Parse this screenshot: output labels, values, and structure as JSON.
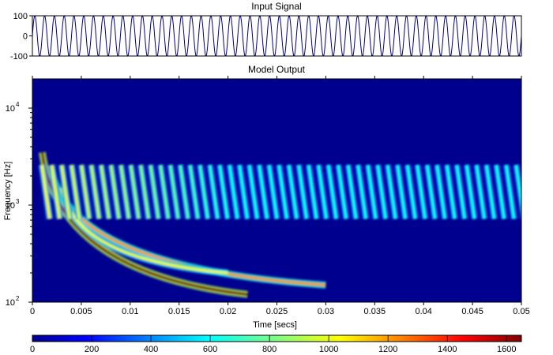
{
  "chart_data": [
    {
      "type": "line",
      "title": "Input Signal",
      "xlabel": "",
      "ylabel": "",
      "xlim": [
        0,
        0.05
      ],
      "ylim": [
        -100,
        100
      ],
      "yticks": [
        100,
        0,
        -100
      ],
      "ytick_labels": [
        "100",
        "0",
        "-100"
      ],
      "grid": false,
      "series": [
        {
          "frequency_hz": 1000,
          "amplitude": 100,
          "cycles_shown": 50
        }
      ]
    },
    {
      "type": "heatmap",
      "title": "Model Output",
      "xlabel": "Time [secs]",
      "ylabel": "Frequency [Hz]",
      "xlim": [
        0,
        0.05
      ],
      "ylim": [
        100,
        20000
      ],
      "yscale": "log",
      "xticks": [
        0,
        0.005,
        0.01,
        0.015,
        0.02,
        0.025,
        0.03,
        0.035,
        0.04,
        0.045,
        0.05
      ],
      "xtick_labels": [
        "0",
        "0.005",
        "0.01",
        "0.015",
        "0.02",
        "0.025",
        "0.03",
        "0.035",
        "0.04",
        "0.045",
        "0.05"
      ],
      "ytick_labels": [
        {
          "base": "10",
          "exp": "2",
          "value": 100
        },
        {
          "base": "10",
          "exp": "3",
          "value": 1000
        },
        {
          "base": "10",
          "exp": "4",
          "value": 10000
        }
      ],
      "colormap": "jet",
      "clim": [
        0,
        1650
      ],
      "colorbar_ticks": [
        0,
        200,
        400,
        600,
        800,
        1000,
        1200,
        1400,
        1600
      ],
      "colorbar_tick_labels": [
        "0",
        "200",
        "400",
        "600",
        "800",
        "1000",
        "1200",
        "1400",
        "1600"
      ],
      "background_color": "#00008f",
      "pulse_count": 49,
      "pulse_center_freq_hz": 1000,
      "pulse_peak_value_early": 1000,
      "pulse_peak_value_late": 650,
      "onset_curves": [
        {
          "start": [
            0.001,
            3500
          ],
          "end": [
            0.022,
            120
          ],
          "peak": 1650
        },
        {
          "start": [
            0.002,
            2200
          ],
          "end": [
            0.03,
            150
          ],
          "peak": 1200
        },
        {
          "start": [
            0.003,
            1500
          ],
          "end": [
            0.02,
            200
          ],
          "peak": 1000
        }
      ]
    }
  ]
}
